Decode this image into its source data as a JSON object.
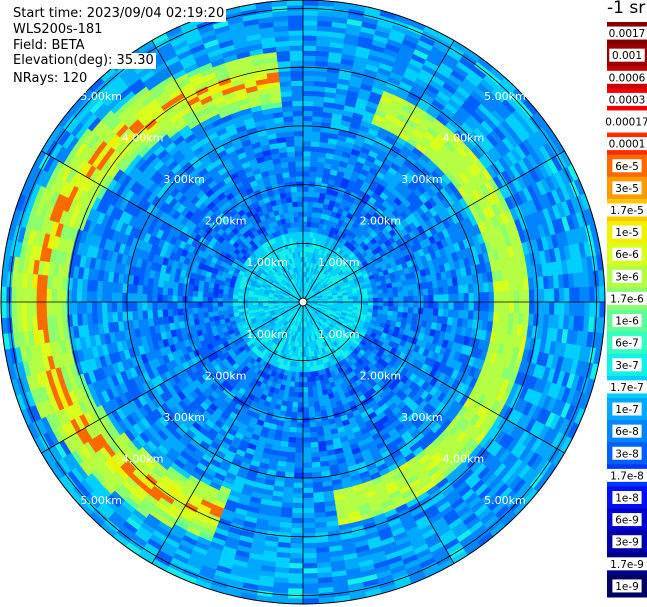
{
  "header": {
    "start_time": "Start time: 2023/09/04 02:19:20",
    "instrument": "WLS200s-181",
    "field": "Field: BETA",
    "elevation": "Elevation(deg): 35.30",
    "nrays": "NRays: 120"
  },
  "colorbar": {
    "units": "-1 sr",
    "labels": [
      "0.0017",
      "0.001",
      "0.0006",
      "0.0003",
      "0.00017",
      "0.0001",
      "6e-5",
      "3e-5",
      "1.7e-5",
      "1e-5",
      "6e-6",
      "3e-6",
      "1.7e-6",
      "1e-6",
      "6e-7",
      "3e-7",
      "1.7e-7",
      "1e-7",
      "6e-8",
      "3e-8",
      "1.7e-8",
      "1e-8",
      "6e-9",
      "3e-9",
      "1.7e-9",
      "1e-9"
    ],
    "colors": [
      "#800000",
      "#9a0000",
      "#c80000",
      "#f00000",
      "#ffffff",
      "#ff2a00",
      "#ff6a00",
      "#ff9a00",
      "#ffc800",
      "#f0f000",
      "#d8ff1e",
      "#b4ff43",
      "#8cff6b",
      "#60ff96",
      "#36ffc2",
      "#14f0e8",
      "#00d0ff",
      "#00a8ff",
      "#0084ff",
      "#0060ff",
      "#0038ff",
      "#0010f0",
      "#0000cc",
      "#0000a8",
      "#000086",
      "#000064"
    ]
  },
  "chart_data": {
    "type": "heatmap",
    "projection": "polar PPI",
    "field": "BETA",
    "scale": "logarithmic",
    "value_range": [
      1e-09,
      0.0017
    ],
    "nrays": 120,
    "range_rings_km": [
      1,
      2,
      3,
      4,
      5
    ],
    "ring_labels": [
      "1.00km",
      "2.00km",
      "3.00km",
      "4.00km",
      "5.00km"
    ],
    "radial_spokes_deg": [
      0,
      30,
      60,
      90,
      120,
      150,
      180,
      210,
      240,
      270,
      300,
      330
    ],
    "features": {
      "background_beta": "3e-8 to 6e-7",
      "arc_beta": "1e-5 to 1.7e-5",
      "arc_peak_beta": "1e-4 to 3e-4",
      "arc_range_km": [
        3.8,
        4.5
      ],
      "arc_azimuth_deg": [
        200,
        355
      ]
    }
  }
}
